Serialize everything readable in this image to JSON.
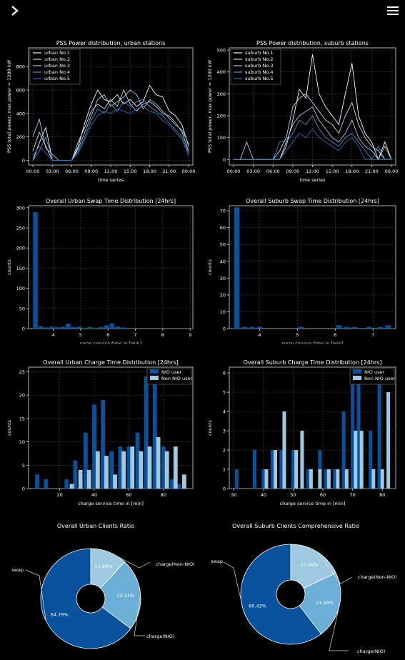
{
  "ui": {
    "back_icon": "chevron-right-icon",
    "menu_icon": "hamburger-menu-icon"
  },
  "colors": {
    "bg": "#000000",
    "fg": "#ffffff",
    "nio": "#08519c",
    "non_nio": "#9ecae1",
    "pie": [
      "#08519c",
      "#6baed6",
      "#9ecae1"
    ],
    "lines": [
      "#f7fbff",
      "#c6dbef",
      "#9ecae1",
      "#4292c6",
      "#2171b5"
    ]
  },
  "chart_data": [
    {
      "id": "urban-power",
      "type": "line",
      "title": "PSS Power distribution, urban stations",
      "xlabel": "time series",
      "ylabel": "PSS total power, max power = 1200 kW",
      "x_ticks": [
        "00:00",
        "03:00",
        "06:00",
        "09:00",
        "12:00",
        "15:00",
        "18:00",
        "21:00",
        "00:00"
      ],
      "y_ticks": [
        0,
        200,
        400,
        600,
        800
      ],
      "ylim": [
        -40,
        960
      ],
      "legend": "top-left",
      "x": [
        "00:00",
        "01:00",
        "02:00",
        "03:00",
        "04:00",
        "05:00",
        "06:00",
        "07:00",
        "08:00",
        "09:00",
        "10:00",
        "11:00",
        "12:00",
        "13:00",
        "14:00",
        "15:00",
        "16:00",
        "17:00",
        "18:00",
        "19:00",
        "20:00",
        "21:00",
        "22:00",
        "23:00",
        "24:00"
      ],
      "series": [
        {
          "name": "urban No.1",
          "values": [
            0,
            150,
            280,
            0,
            0,
            0,
            0,
            120,
            320,
            480,
            600,
            520,
            500,
            560,
            480,
            520,
            460,
            500,
            640,
            560,
            540,
            420,
            380,
            300,
            120
          ]
        },
        {
          "name": "urban No.2",
          "values": [
            80,
            240,
            120,
            0,
            0,
            0,
            0,
            160,
            280,
            420,
            480,
            440,
            520,
            460,
            600,
            480,
            420,
            480,
            500,
            460,
            400,
            380,
            320,
            240,
            80
          ]
        },
        {
          "name": "urban No.3",
          "values": [
            200,
            350,
            100,
            50,
            0,
            0,
            0,
            100,
            240,
            380,
            520,
            560,
            460,
            500,
            540,
            600,
            560,
            440,
            520,
            480,
            420,
            360,
            300,
            260,
            140
          ]
        },
        {
          "name": "urban No.4",
          "values": [
            0,
            80,
            200,
            0,
            0,
            0,
            0,
            80,
            200,
            340,
            440,
            400,
            480,
            420,
            500,
            460,
            500,
            520,
            460,
            420,
            380,
            320,
            260,
            200,
            60
          ]
        },
        {
          "name": "urban No.5",
          "values": [
            40,
            120,
            60,
            0,
            0,
            0,
            0,
            60,
            180,
            300,
            380,
            420,
            400,
            440,
            420,
            400,
            440,
            460,
            420,
            400,
            340,
            300,
            240,
            180,
            40
          ]
        }
      ]
    },
    {
      "id": "suburb-power",
      "type": "line",
      "title": "PSS Power distribution, suburb stations",
      "xlabel": "time series",
      "ylabel": "PSS total power, max power = 1200 kW",
      "x_ticks": [
        "00:00",
        "03:00",
        "06:00",
        "09:00",
        "12:00",
        "15:00",
        "18:00",
        "21:00",
        "00:00"
      ],
      "y_ticks": [
        0,
        100,
        200,
        300,
        400,
        500
      ],
      "ylim": [
        -25,
        510
      ],
      "legend": "top-left",
      "x": [
        "00:00",
        "01:00",
        "02:00",
        "03:00",
        "04:00",
        "05:00",
        "06:00",
        "07:00",
        "08:00",
        "09:00",
        "10:00",
        "11:00",
        "12:00",
        "13:00",
        "14:00",
        "15:00",
        "16:00",
        "17:00",
        "18:00",
        "19:00",
        "20:00",
        "21:00",
        "22:00",
        "23:00",
        "24:00"
      ],
      "series": [
        {
          "name": "suburb No.1",
          "values": [
            0,
            0,
            0,
            0,
            0,
            0,
            0,
            0,
            60,
            180,
            320,
            280,
            480,
            300,
            240,
            200,
            160,
            300,
            440,
            200,
            120,
            80,
            0,
            80,
            0
          ]
        },
        {
          "name": "suburb No.2",
          "values": [
            0,
            0,
            0,
            0,
            0,
            0,
            0,
            40,
            100,
            240,
            280,
            300,
            260,
            220,
            180,
            160,
            120,
            200,
            260,
            160,
            100,
            60,
            40,
            0,
            0
          ]
        },
        {
          "name": "suburb No.3",
          "values": [
            0,
            0,
            80,
            0,
            0,
            0,
            0,
            0,
            80,
            160,
            200,
            220,
            240,
            180,
            140,
            100,
            80,
            120,
            180,
            100,
            60,
            40,
            0,
            60,
            0
          ]
        },
        {
          "name": "suburb No.4",
          "values": [
            0,
            0,
            0,
            0,
            0,
            0,
            0,
            80,
            80,
            120,
            180,
            160,
            200,
            140,
            100,
            80,
            60,
            100,
            120,
            80,
            40,
            0,
            60,
            0,
            0
          ]
        },
        {
          "name": "suburb No.5",
          "values": [
            0,
            0,
            0,
            0,
            0,
            0,
            0,
            0,
            40,
            80,
            120,
            100,
            140,
            100,
            80,
            60,
            40,
            80,
            100,
            60,
            0,
            0,
            0,
            0,
            0
          ]
        }
      ]
    },
    {
      "id": "urban-swap",
      "type": "bar",
      "title": "Overall Urban Swap Time Distribution [24hrs]",
      "xlabel": "swap service time in [min]",
      "ylabel": "counts",
      "xlim": [
        3.1,
        9.1
      ],
      "ylim": [
        0,
        305
      ],
      "x_ticks": [
        4,
        5,
        6,
        7,
        8,
        9
      ],
      "y_ticks": [
        0,
        50,
        100,
        150,
        200,
        250,
        300
      ],
      "bin_width": 0.17,
      "bins": [
        3.35,
        3.55,
        3.75,
        3.95,
        4.15,
        4.35,
        4.55,
        4.75,
        4.95,
        5.15,
        5.35,
        5.55,
        5.75,
        5.95,
        6.15,
        6.35,
        6.55,
        6.75
      ],
      "values": [
        289,
        6,
        3,
        5,
        4,
        5,
        12,
        4,
        5,
        2,
        4,
        2,
        4,
        8,
        13,
        5,
        3,
        2
      ]
    },
    {
      "id": "suburb-swap",
      "type": "bar",
      "title": "Overall Suburb Swap Time Distribution [24hrs]",
      "xlabel": "swap service time in [min]",
      "ylabel": "counts",
      "xlim": [
        3.2,
        7.6
      ],
      "ylim": [
        0,
        73
      ],
      "x_ticks": [
        4,
        5,
        6,
        7
      ],
      "y_ticks": [
        0,
        10,
        20,
        30,
        40,
        50,
        60,
        70
      ],
      "bin_width": 0.14,
      "bins": [
        3.4,
        3.6,
        3.8,
        4.0,
        5.1,
        6.1,
        6.3,
        6.5,
        6.9,
        7.2,
        7.4
      ],
      "values": [
        72,
        1,
        1,
        1,
        1,
        2,
        1,
        1,
        1,
        1,
        2
      ]
    },
    {
      "id": "urban-charge",
      "type": "bar",
      "title": "Overall Urban Charge Time Distribution [24hrs]",
      "xlabel": "charge service time in [min]",
      "ylabel": "counts",
      "xlim": [
        2,
        97
      ],
      "ylim": [
        0,
        26
      ],
      "x_ticks": [
        20,
        40,
        60,
        80
      ],
      "y_ticks": [
        0,
        5,
        10,
        15,
        20,
        25
      ],
      "legend": "top-right",
      "bar_width": 2.4,
      "series": [
        {
          "name": "NIO user",
          "x": [
            7,
            12,
            24,
            29,
            35,
            40,
            45,
            50,
            55,
            60,
            65,
            70,
            75,
            80,
            85,
            89
          ],
          "values": [
            3,
            2,
            2,
            6,
            12,
            18,
            19,
            8,
            9,
            9,
            12,
            24,
            23,
            9,
            2,
            1
          ]
        },
        {
          "name": "Non NIO user",
          "x": [
            27,
            32,
            37,
            42,
            47,
            52,
            57,
            62,
            67,
            72,
            77,
            82,
            87,
            92
          ],
          "values": [
            1,
            4,
            4,
            8,
            7,
            3,
            8,
            9,
            8,
            9,
            11,
            8,
            9,
            3
          ]
        }
      ]
    },
    {
      "id": "suburb-charge",
      "type": "bar",
      "title": "Overall Suburb Charge Time Distribution [24hrs]",
      "xlabel": "charge service time in [min]",
      "ylabel": "counts",
      "xlim": [
        28.5,
        84.5
      ],
      "ylim": [
        0,
        6.3
      ],
      "x_ticks": [
        30,
        40,
        50,
        60,
        70,
        80
      ],
      "y_ticks": [
        0,
        1,
        2,
        3,
        4,
        5,
        6
      ],
      "legend": "top-right",
      "bar_width": 1.2,
      "series": [
        {
          "name": "NIO user",
          "x": [
            31,
            37,
            40,
            43,
            46,
            50,
            55,
            59,
            61,
            64,
            67,
            70,
            72,
            76,
            79
          ],
          "values": [
            1,
            2,
            1,
            2,
            2,
            2,
            1,
            2,
            1,
            1,
            4,
            6,
            6,
            3,
            6
          ]
        },
        {
          "name": "Non NIO user",
          "x": [
            41,
            44,
            47,
            51,
            53,
            56,
            59,
            62,
            65,
            68,
            71,
            73,
            77,
            80,
            82
          ],
          "values": [
            1,
            2,
            4,
            2,
            3,
            1,
            1,
            1,
            1,
            1,
            3,
            3,
            1,
            1,
            5
          ]
        }
      ]
    },
    {
      "id": "urban-pie",
      "type": "pie",
      "title": "Overall Urban Clients Ratio",
      "labels": [
        "swap",
        "charge(NIO)",
        "charge(Non-NIO)"
      ],
      "values": [
        64.79,
        23.31,
        11.9
      ],
      "pct_labels": [
        "64.79%",
        "23.31%",
        "11.90%"
      ]
    },
    {
      "id": "suburb-pie",
      "type": "pie",
      "title": "Overall Suburb Clients Comprehensive Ratio",
      "labels": [
        "swap",
        "charge(NIO)",
        "charge(Non-NIO)"
      ],
      "values": [
        60.43,
        21.58,
        17.99
      ],
      "pct_labels": [
        "60.43%",
        "21.58%",
        "17.99%"
      ]
    }
  ]
}
